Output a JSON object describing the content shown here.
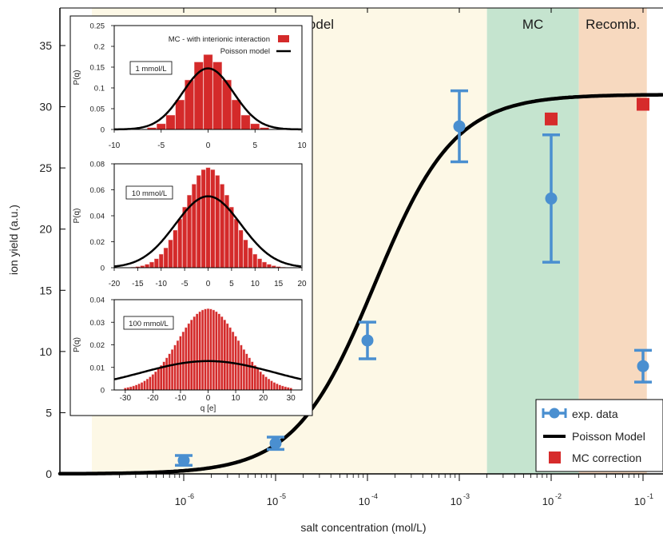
{
  "chart_data": [
    {
      "type": "scatter",
      "xlabel": "salt concentration (mol/L)",
      "ylabel": "ion yield (a.u.)",
      "x_scale": "log",
      "xlim": [
        1e-07,
        0.1
      ],
      "ylim": [
        0,
        38
      ],
      "x_tick_base": "10",
      "x_ticks": [
        {
          "value": 1e-06,
          "exp": "-6"
        },
        {
          "value": 1e-05,
          "exp": "-5"
        },
        {
          "value": 0.0001,
          "exp": "-4"
        },
        {
          "value": 0.001,
          "exp": "-3"
        },
        {
          "value": 0.01,
          "exp": "-2"
        },
        {
          "value": 0.1,
          "exp": "-1"
        }
      ],
      "y_ticks": [
        "0",
        "5",
        "10",
        "15",
        "20",
        "25",
        "30",
        "35"
      ],
      "regions": [
        {
          "label": "Poisson model",
          "from": 1e-07,
          "to": 0.002,
          "color": "#fdf8e6"
        },
        {
          "label": "MC",
          "from": 0.002,
          "to": 0.02,
          "color": "#c5e4cf"
        },
        {
          "label": "Recomb.",
          "from": 0.02,
          "to": 0.11,
          "color": "#f7d9bf"
        }
      ],
      "series": [
        {
          "name": "exp. data",
          "kind": "errorbar",
          "color": "#4a8fd0",
          "x": [
            1e-06,
            1e-05,
            0.0001,
            0.001,
            0.01,
            0.1
          ],
          "y": [
            1.1,
            2.5,
            10.9,
            28.4,
            22.5,
            8.8
          ],
          "yerr": [
            0.4,
            0.5,
            1.5,
            2.9,
            5.2,
            1.3
          ]
        },
        {
          "name": "Poisson Model",
          "kind": "line",
          "color": "#000000",
          "model": {
            "ymax": 31.0,
            "x_half": 0.00012,
            "slope": 1.0
          }
        },
        {
          "name": "MC correction",
          "kind": "marker",
          "color": "#d62b2b",
          "x": [
            0.01,
            0.1
          ],
          "y": [
            29.0,
            30.2
          ]
        }
      ],
      "legend_position": "bottom-right"
    },
    {
      "type": "bar",
      "panel": "inset-1",
      "label": "1 mmol/L",
      "ylabel": "P(q)",
      "xlim": [
        -10,
        10
      ],
      "ylim": [
        0,
        0.25
      ],
      "x_ticks": [
        "-10",
        "-5",
        "0",
        "5",
        "10"
      ],
      "y_ticks": [
        "0",
        "0.05",
        "0.1",
        "0.15",
        "0.2",
        "0.25"
      ],
      "legend": [
        "MC - with interionic interaction",
        "Poisson model"
      ],
      "legend_position": "top-right",
      "bars": {
        "sigma": 2.2,
        "peak": 0.18,
        "x_from": -6,
        "x_to": 6
      },
      "curve": {
        "sigma": 2.7,
        "peak": 0.147
      }
    },
    {
      "type": "bar",
      "panel": "inset-2",
      "label": "10 mmol/L",
      "ylabel": "P(q)",
      "xlim": [
        -20,
        20
      ],
      "ylim": [
        0,
        0.08
      ],
      "x_ticks": [
        "-20",
        "-15",
        "-10",
        "-5",
        "0",
        "5",
        "10",
        "15",
        "20"
      ],
      "y_ticks": [
        "0",
        "0.02",
        "0.04",
        "0.06",
        "0.08"
      ],
      "bars": {
        "sigma": 5.0,
        "peak": 0.077,
        "x_from": -16,
        "x_to": 16
      },
      "curve": {
        "sigma": 7.0,
        "peak": 0.055
      }
    },
    {
      "type": "bar",
      "panel": "inset-3",
      "label": "100 mmol/L",
      "ylabel": "P(q)",
      "xlabel": "q [e]",
      "xlim": [
        -34,
        34
      ],
      "ylim": [
        0,
        0.04
      ],
      "x_ticks": [
        "-30",
        "-20",
        "-10",
        "0",
        "10",
        "20",
        "30"
      ],
      "y_ticks": [
        "0",
        "0.01",
        "0.02",
        "0.03",
        "0.04"
      ],
      "bars": {
        "sigma": 11.0,
        "peak": 0.036,
        "x_from": -30,
        "x_to": 30
      },
      "curve": {
        "sigma": 24.0,
        "peak": 0.0128
      }
    }
  ]
}
